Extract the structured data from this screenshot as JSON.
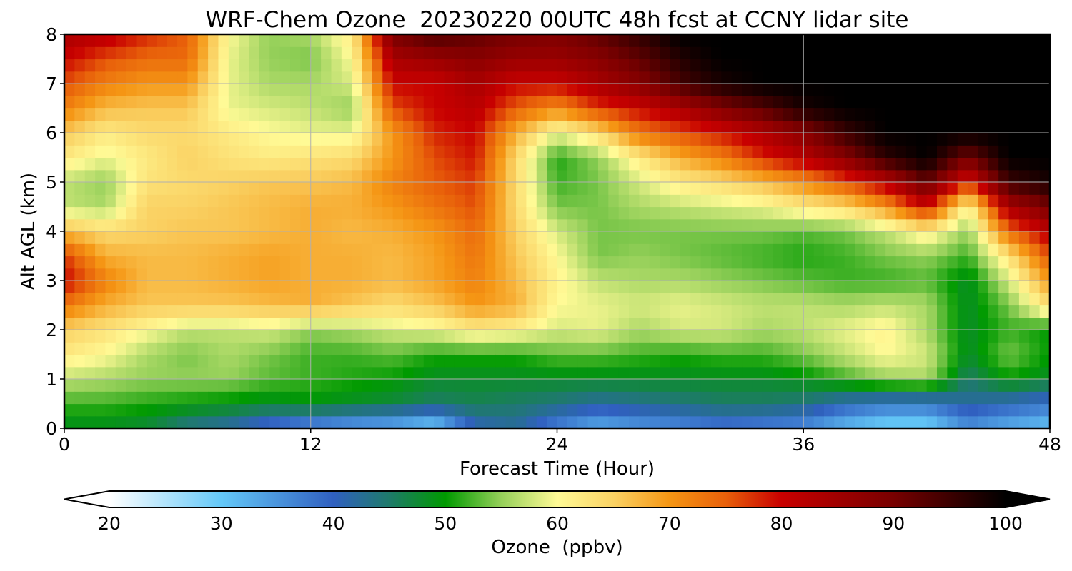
{
  "chart_data": {
    "type": "heatmap",
    "title": "WRF-Chem Ozone  20230220 00UTC 48h fcst at CCNY lidar site",
    "xlabel": "Forecast Time (Hour)",
    "ylabel": "Alt AGL (km)",
    "xlim": [
      0,
      48
    ],
    "ylim": [
      0,
      8
    ],
    "xticks": [
      0,
      12,
      24,
      36,
      48
    ],
    "yticks": [
      0,
      1,
      2,
      3,
      4,
      5,
      6,
      7,
      8
    ],
    "grid": true,
    "x": [
      0,
      2,
      4,
      6,
      8,
      10,
      12,
      14,
      16,
      18,
      20,
      22,
      24,
      26,
      28,
      30,
      32,
      34,
      36,
      38,
      40,
      42,
      44,
      46,
      48
    ],
    "y": [
      0,
      0.5,
      1,
      1.5,
      2,
      2.5,
      3,
      3.5,
      4,
      4.5,
      5,
      5.5,
      6,
      6.5,
      7,
      7.5,
      8
    ],
    "values": [
      [
        48,
        48,
        47,
        43,
        41,
        37,
        34,
        32,
        31,
        28,
        40,
        42,
        36,
        32,
        34,
        35,
        37,
        36,
        35,
        31,
        28,
        28,
        35,
        32,
        30
      ],
      [
        52,
        52,
        51,
        50,
        49,
        48,
        49,
        48,
        47,
        45,
        46,
        45,
        44,
        42,
        43,
        44,
        45,
        45,
        44,
        40,
        38,
        38,
        42,
        40,
        38
      ],
      [
        57,
        56,
        55,
        55,
        55,
        53,
        52,
        51,
        50,
        48,
        48,
        48,
        48,
        48,
        48,
        48,
        48,
        48,
        49,
        52,
        55,
        56,
        45,
        50,
        48
      ],
      [
        62,
        60,
        56,
        54,
        56,
        54,
        52,
        52,
        53,
        51,
        51,
        51,
        53,
        53,
        52,
        51,
        52,
        52,
        54,
        57,
        60,
        58,
        48,
        54,
        50
      ],
      [
        65,
        63,
        60,
        57,
        57,
        58,
        55,
        56,
        58,
        59,
        62,
        61,
        58,
        59,
        56,
        58,
        58,
        56,
        57,
        59,
        61,
        56,
        48,
        52,
        50
      ],
      [
        73,
        68,
        66,
        66,
        66,
        67,
        68,
        66,
        64,
        66,
        70,
        68,
        60,
        59,
        58,
        59,
        58,
        57,
        57,
        56,
        57,
        56,
        48,
        54,
        64
      ],
      [
        80,
        72,
        67,
        67,
        68,
        69,
        68,
        68,
        67,
        69,
        72,
        67,
        61,
        57,
        56,
        56,
        55,
        54,
        53,
        52,
        52,
        53,
        48,
        58,
        70
      ],
      [
        77,
        68,
        67,
        67,
        68,
        69,
        68,
        68,
        67,
        69,
        73,
        66,
        60,
        54,
        55,
        54,
        53,
        52,
        51,
        52,
        54,
        55,
        52,
        63,
        76
      ],
      [
        67,
        64,
        65,
        66,
        66,
        67,
        68,
        67,
        68,
        70,
        74,
        65,
        58,
        54,
        54,
        54,
        54,
        54,
        53,
        54,
        57,
        62,
        55,
        74,
        82
      ],
      [
        57,
        56,
        65,
        65,
        66,
        67,
        68,
        68,
        70,
        73,
        76,
        64,
        54,
        54,
        56,
        57,
        58,
        59,
        62,
        64,
        70,
        80,
        60,
        84,
        90
      ],
      [
        57,
        55,
        63,
        64,
        65,
        66,
        66,
        67,
        72,
        75,
        77,
        64,
        52,
        54,
        58,
        62,
        64,
        67,
        71,
        76,
        82,
        92,
        78,
        95,
        98
      ],
      [
        62,
        59,
        62,
        65,
        63,
        62,
        63,
        64,
        70,
        76,
        79,
        64,
        51,
        55,
        62,
        68,
        72,
        78,
        82,
        88,
        96,
        100,
        90,
        100,
        100
      ],
      [
        66,
        62,
        64,
        64,
        62,
        60,
        59,
        59,
        70,
        78,
        80,
        68,
        59,
        64,
        73,
        76,
        79,
        83,
        88,
        95,
        100,
        100,
        100,
        100,
        100
      ],
      [
        72,
        67,
        66,
        66,
        59,
        58,
        57,
        55,
        76,
        80,
        82,
        75,
        71,
        77,
        80,
        84,
        89,
        93,
        98,
        100,
        100,
        100,
        100,
        100,
        100
      ],
      [
        76,
        72,
        70,
        70,
        59,
        56,
        56,
        58,
        80,
        80,
        84,
        80,
        80,
        84,
        88,
        94,
        98,
        100,
        100,
        100,
        100,
        100,
        100,
        100,
        100
      ],
      [
        80,
        76,
        74,
        74,
        59,
        55,
        54,
        60,
        84,
        86,
        88,
        86,
        86,
        88,
        92,
        97,
        100,
        100,
        100,
        100,
        100,
        100,
        100,
        100,
        100
      ],
      [
        84,
        82,
        78,
        75,
        60,
        55,
        56,
        62,
        90,
        94,
        92,
        90,
        89,
        92,
        96,
        100,
        100,
        100,
        100,
        100,
        100,
        100,
        100,
        100,
        100
      ]
    ],
    "colorbar": {
      "label": "Ozone  (ppbv)",
      "range": [
        20,
        100
      ],
      "extend": "both",
      "tick_labels": [
        "20",
        "30",
        "40",
        "50",
        "60",
        "70",
        "80",
        "90",
        "100"
      ],
      "color_stops": [
        {
          "value": 20,
          "color": "#ffffff"
        },
        {
          "value": 30,
          "color": "#64c8f8"
        },
        {
          "value": 40,
          "color": "#3060c0"
        },
        {
          "value": 45,
          "color": "#1e7a6a"
        },
        {
          "value": 50,
          "color": "#009a00"
        },
        {
          "value": 55,
          "color": "#96d05a"
        },
        {
          "value": 60,
          "color": "#fffa96"
        },
        {
          "value": 65,
          "color": "#fad264"
        },
        {
          "value": 70,
          "color": "#f59614"
        },
        {
          "value": 75,
          "color": "#e8600a"
        },
        {
          "value": 80,
          "color": "#c80000"
        },
        {
          "value": 90,
          "color": "#780000"
        },
        {
          "value": 100,
          "color": "#000000"
        }
      ]
    }
  }
}
